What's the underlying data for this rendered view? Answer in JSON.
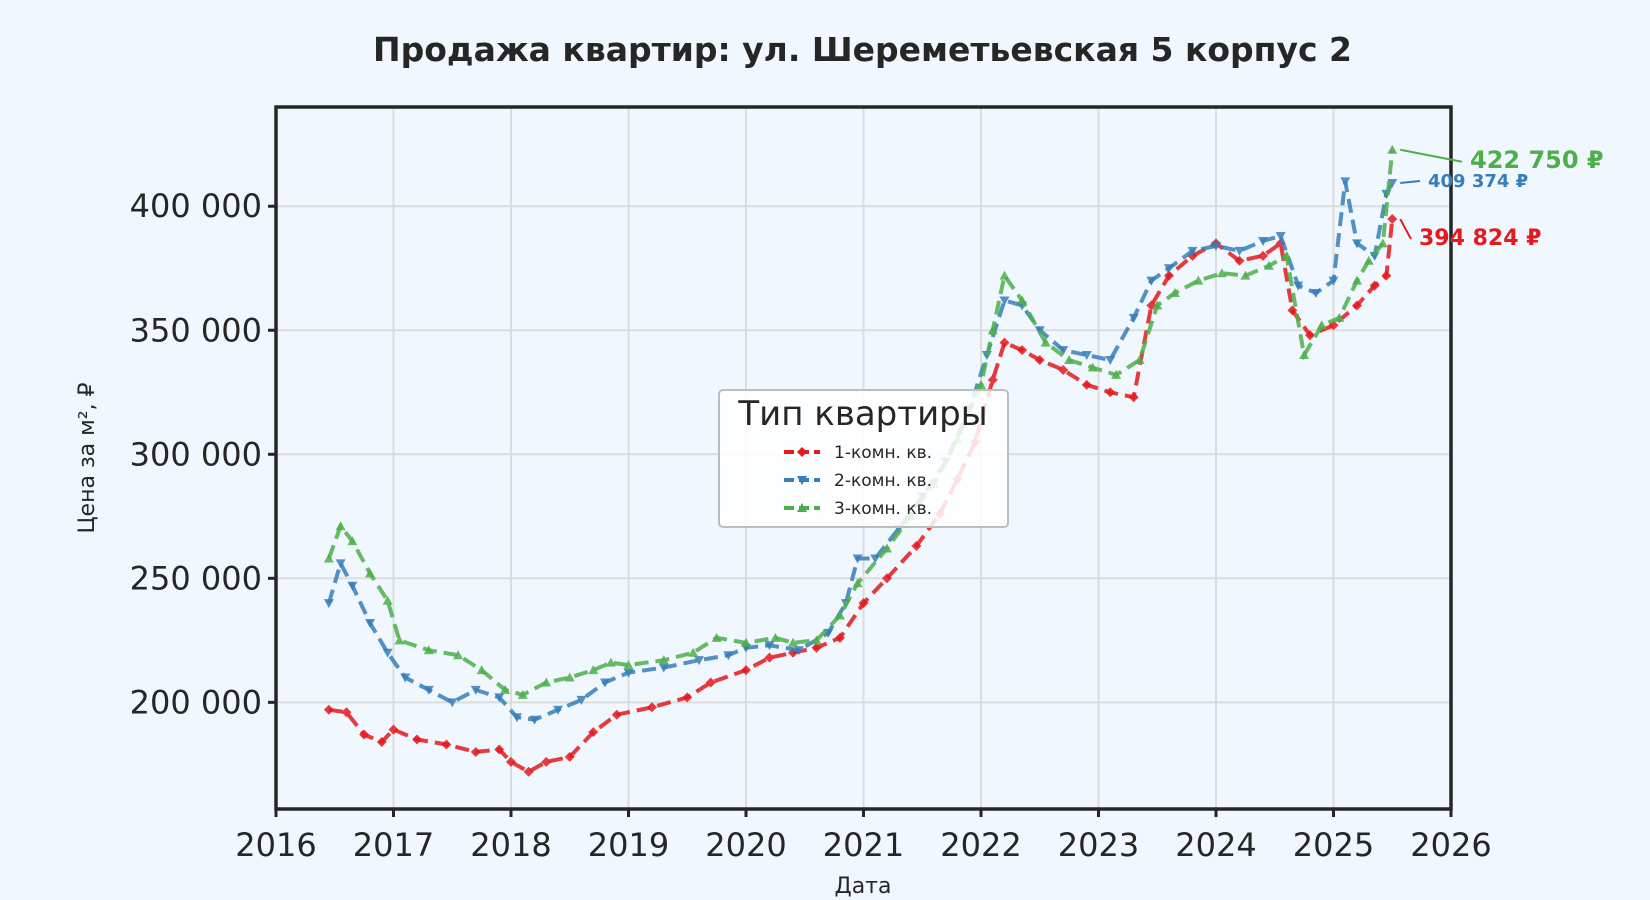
{
  "chart_data": {
    "type": "line",
    "title": "Продажа квартир: ул. Шереметьевская 5 корпус 2",
    "xlabel": "Дата",
    "ylabel": "Цена за м², ₽",
    "xlim": [
      2016.0,
      2026.0
    ],
    "ylim": [
      157000,
      440000
    ],
    "x_ticks": [
      "2016",
      "2017",
      "2018",
      "2019",
      "2020",
      "2021",
      "2022",
      "2023",
      "2024",
      "2025",
      "2026"
    ],
    "y_ticks": [
      {
        "value": 200000,
        "label": "200 000"
      },
      {
        "value": 250000,
        "label": "250 000"
      },
      {
        "value": 300000,
        "label": "300 000"
      },
      {
        "value": 350000,
        "label": "350 000"
      },
      {
        "value": 400000,
        "label": "400 000"
      }
    ],
    "grid": true,
    "legend": {
      "title": "Тип квартиры",
      "placement": "center"
    },
    "series": [
      {
        "name": "1-комн. кв.",
        "color": "#e41a1c",
        "marker": "diamond",
        "end_label": "394 824 ₽",
        "points": [
          [
            2016.45,
            197000
          ],
          [
            2016.6,
            196000
          ],
          [
            2016.75,
            187000
          ],
          [
            2016.9,
            184000
          ],
          [
            2017.0,
            189000
          ],
          [
            2017.2,
            185000
          ],
          [
            2017.45,
            183000
          ],
          [
            2017.7,
            180000
          ],
          [
            2017.9,
            181000
          ],
          [
            2018.0,
            176000
          ],
          [
            2018.15,
            172000
          ],
          [
            2018.3,
            176000
          ],
          [
            2018.5,
            178000
          ],
          [
            2018.7,
            188000
          ],
          [
            2018.9,
            195000
          ],
          [
            2019.2,
            198000
          ],
          [
            2019.5,
            202000
          ],
          [
            2019.7,
            208000
          ],
          [
            2020.0,
            213000
          ],
          [
            2020.2,
            218000
          ],
          [
            2020.4,
            220000
          ],
          [
            2020.6,
            222000
          ],
          [
            2020.8,
            226000
          ],
          [
            2021.0,
            240000
          ],
          [
            2021.2,
            250000
          ],
          [
            2021.45,
            263000
          ],
          [
            2021.65,
            276000
          ],
          [
            2021.8,
            290000
          ],
          [
            2021.95,
            305000
          ],
          [
            2022.1,
            330000
          ],
          [
            2022.2,
            345000
          ],
          [
            2022.35,
            342000
          ],
          [
            2022.5,
            338000
          ],
          [
            2022.7,
            334000
          ],
          [
            2022.9,
            328000
          ],
          [
            2023.1,
            325000
          ],
          [
            2023.3,
            323000
          ],
          [
            2023.45,
            360000
          ],
          [
            2023.6,
            372000
          ],
          [
            2023.8,
            380000
          ],
          [
            2024.0,
            385000
          ],
          [
            2024.2,
            378000
          ],
          [
            2024.4,
            380000
          ],
          [
            2024.55,
            385000
          ],
          [
            2024.65,
            358000
          ],
          [
            2024.8,
            348000
          ],
          [
            2025.0,
            352000
          ],
          [
            2025.2,
            360000
          ],
          [
            2025.35,
            368000
          ],
          [
            2025.45,
            372000
          ],
          [
            2025.5,
            394824
          ]
        ]
      },
      {
        "name": "2-комн. кв.",
        "color": "#377eb8",
        "marker": "triangle-down",
        "end_label": "409 374 ₽",
        "points": [
          [
            2016.45,
            240000
          ],
          [
            2016.55,
            256000
          ],
          [
            2016.65,
            247000
          ],
          [
            2016.8,
            232000
          ],
          [
            2016.95,
            220000
          ],
          [
            2017.1,
            210000
          ],
          [
            2017.3,
            205000
          ],
          [
            2017.5,
            200000
          ],
          [
            2017.7,
            205000
          ],
          [
            2017.9,
            202000
          ],
          [
            2018.05,
            194000
          ],
          [
            2018.2,
            193000
          ],
          [
            2018.4,
            197000
          ],
          [
            2018.6,
            201000
          ],
          [
            2018.8,
            208000
          ],
          [
            2019.0,
            212000
          ],
          [
            2019.3,
            214000
          ],
          [
            2019.6,
            217000
          ],
          [
            2019.85,
            219000
          ],
          [
            2020.0,
            222000
          ],
          [
            2020.2,
            223000
          ],
          [
            2020.45,
            221000
          ],
          [
            2020.7,
            228000
          ],
          [
            2020.85,
            240000
          ],
          [
            2020.95,
            258000
          ],
          [
            2021.1,
            258000
          ],
          [
            2021.3,
            270000
          ],
          [
            2021.5,
            283000
          ],
          [
            2021.7,
            297000
          ],
          [
            2021.9,
            318000
          ],
          [
            2022.05,
            340000
          ],
          [
            2022.2,
            362000
          ],
          [
            2022.35,
            360000
          ],
          [
            2022.5,
            350000
          ],
          [
            2022.7,
            342000
          ],
          [
            2022.9,
            340000
          ],
          [
            2023.1,
            338000
          ],
          [
            2023.3,
            355000
          ],
          [
            2023.45,
            370000
          ],
          [
            2023.6,
            375000
          ],
          [
            2023.8,
            382000
          ],
          [
            2024.0,
            384000
          ],
          [
            2024.2,
            382000
          ],
          [
            2024.4,
            386000
          ],
          [
            2024.55,
            388000
          ],
          [
            2024.7,
            368000
          ],
          [
            2024.85,
            365000
          ],
          [
            2025.0,
            370000
          ],
          [
            2025.1,
            410000
          ],
          [
            2025.2,
            385000
          ],
          [
            2025.35,
            380000
          ],
          [
            2025.45,
            405000
          ],
          [
            2025.5,
            409374
          ]
        ]
      },
      {
        "name": "3-комн. кв.",
        "color": "#4daf4a",
        "marker": "triangle-up",
        "end_label": "422 750 ₽",
        "points": [
          [
            2016.45,
            258000
          ],
          [
            2016.55,
            271000
          ],
          [
            2016.65,
            265000
          ],
          [
            2016.8,
            252000
          ],
          [
            2016.95,
            241000
          ],
          [
            2017.05,
            225000
          ],
          [
            2017.3,
            221000
          ],
          [
            2017.55,
            219000
          ],
          [
            2017.75,
            213000
          ],
          [
            2017.95,
            205000
          ],
          [
            2018.1,
            203000
          ],
          [
            2018.3,
            208000
          ],
          [
            2018.5,
            210000
          ],
          [
            2018.7,
            213000
          ],
          [
            2018.85,
            216000
          ],
          [
            2019.0,
            215000
          ],
          [
            2019.3,
            217000
          ],
          [
            2019.55,
            220000
          ],
          [
            2019.75,
            226000
          ],
          [
            2020.0,
            224000
          ],
          [
            2020.25,
            226000
          ],
          [
            2020.4,
            224000
          ],
          [
            2020.6,
            225000
          ],
          [
            2020.8,
            235000
          ],
          [
            2020.95,
            248000
          ],
          [
            2021.2,
            262000
          ],
          [
            2021.4,
            275000
          ],
          [
            2021.6,
            288000
          ],
          [
            2021.8,
            306000
          ],
          [
            2022.0,
            328000
          ],
          [
            2022.1,
            350000
          ],
          [
            2022.2,
            372000
          ],
          [
            2022.35,
            362000
          ],
          [
            2022.55,
            345000
          ],
          [
            2022.75,
            338000
          ],
          [
            2022.95,
            335000
          ],
          [
            2023.15,
            332000
          ],
          [
            2023.35,
            338000
          ],
          [
            2023.5,
            360000
          ],
          [
            2023.65,
            365000
          ],
          [
            2023.85,
            370000
          ],
          [
            2024.05,
            373000
          ],
          [
            2024.25,
            372000
          ],
          [
            2024.45,
            376000
          ],
          [
            2024.6,
            380000
          ],
          [
            2024.75,
            340000
          ],
          [
            2024.9,
            352000
          ],
          [
            2025.05,
            355000
          ],
          [
            2025.2,
            370000
          ],
          [
            2025.3,
            378000
          ],
          [
            2025.42,
            385000
          ],
          [
            2025.5,
            422750
          ]
        ]
      }
    ]
  }
}
